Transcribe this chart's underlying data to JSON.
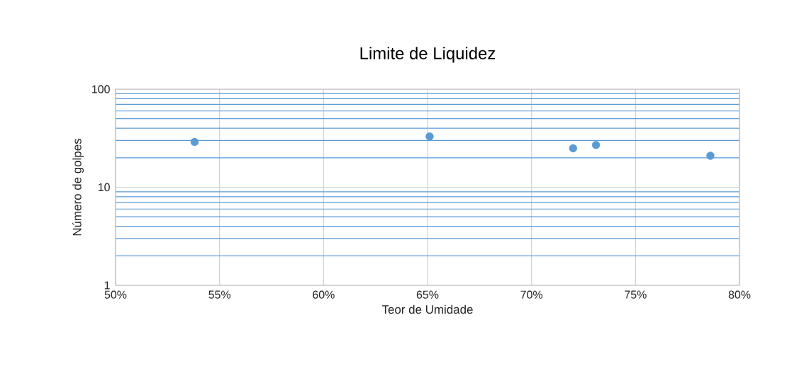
{
  "chart_data": {
    "type": "scatter",
    "title": "Limite de Liquidez",
    "xlabel": "Teor de Umidade",
    "ylabel": "Número de golpes",
    "series": [
      {
        "color": "#5b9bd5",
        "x": [
          53.8,
          65.1,
          72.0,
          73.1,
          78.6
        ],
        "values": [
          29,
          33,
          25,
          27,
          21
        ]
      }
    ],
    "xlim": [
      50,
      80
    ],
    "xticks": [
      {
        "value": 50,
        "label": "50%"
      },
      {
        "value": 55,
        "label": "55%"
      },
      {
        "value": 60,
        "label": "60%"
      },
      {
        "value": 65,
        "label": "65%"
      },
      {
        "value": 70,
        "label": "70%"
      },
      {
        "value": 75,
        "label": "75%"
      },
      {
        "value": 80,
        "label": "80%"
      }
    ],
    "ylim": [
      1,
      100
    ],
    "yticks": [
      1,
      {
        "value": 2,
        "label": null
      },
      {
        "value": 3,
        "label": null
      },
      {
        "value": 4,
        "label": null
      },
      {
        "value": 5,
        "label": null
      },
      {
        "value": 6,
        "label": null
      },
      {
        "value": 7,
        "label": null
      },
      {
        "value": 8,
        "label": null
      },
      {
        "value": 9,
        "label": null
      },
      10,
      {
        "value": 20,
        "label": null
      },
      {
        "value": 30,
        "label": null
      },
      {
        "value": 40,
        "label": null
      },
      {
        "value": 50,
        "label": null
      },
      {
        "value": 60,
        "label": null
      },
      {
        "value": 70,
        "label": null
      },
      {
        "value": 80,
        "label": null
      },
      {
        "value": 90,
        "label": null
      },
      100
    ],
    "log": true,
    "grid": true,
    "marker": "circle"
  }
}
